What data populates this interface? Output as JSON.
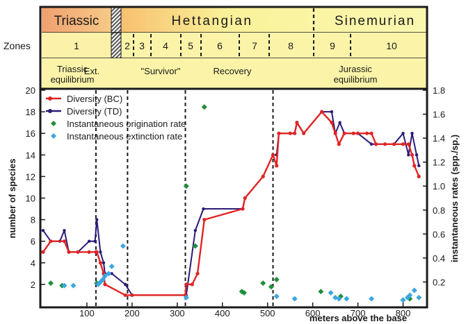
{
  "header": {
    "periods": [
      "Triassic",
      "Hettangian",
      "Sinemurian"
    ],
    "zones_label": "Zones",
    "zones": [
      "1",
      "2",
      "3",
      "4",
      "5",
      "6",
      "7",
      "8",
      "9",
      "10"
    ],
    "phase_row1": [
      "Triassic",
      "Ext.",
      "\"Survivor\"",
      "Recovery",
      "Jurassic"
    ],
    "phase_row2": [
      "equilibrium",
      "equilibrium"
    ]
  },
  "colors": {
    "bc": "#e02424",
    "td": "#2b1a78",
    "origination": "#1f8f3a",
    "extinction": "#3aa7e0",
    "triassic_band": "#f2a86a",
    "jurassic_band": "#faf29a",
    "zone_band": "#fbf4a8"
  },
  "chart_data": {
    "type": "line",
    "xlabel": "meters above the base",
    "ylabel": "number of species",
    "y2label": "instantaneous rates (spp./sp.)",
    "xlim": [
      0,
      850
    ],
    "ylim": [
      0,
      20
    ],
    "y2lim": [
      0,
      1.8
    ],
    "xticks": [
      100,
      200,
      300,
      400,
      500,
      600,
      700,
      800
    ],
    "yticks": [
      2,
      4,
      6,
      8,
      10,
      12,
      14,
      16,
      18,
      20
    ],
    "y2ticks": [
      0.2,
      0.4,
      0.6,
      0.8,
      1.0,
      1.2,
      1.4,
      1.6,
      1.8
    ],
    "legend": {
      "position": "top-left",
      "entries": [
        "Diversity (BC)",
        "Diversity (TD)",
        "Instantaneous origination rate",
        "Instantaneous extinction rate"
      ]
    },
    "boundaries_m": [
      120,
      190,
      318,
      512
    ],
    "series": [
      {
        "name": "Diversity (BC)",
        "axis": "left",
        "style": "line-dots",
        "x": [
          3,
          20,
          50,
          60,
          80,
          105,
          120,
          122,
          130,
          137,
          140,
          185,
          200,
          318,
          320,
          333,
          345,
          360,
          445,
          450,
          490,
          512,
          520,
          525,
          550,
          560,
          565,
          580,
          620,
          642,
          650,
          658,
          670,
          690,
          700,
          720,
          730,
          740,
          760,
          780,
          800,
          812,
          820,
          825,
          835
        ],
        "y": [
          5,
          6,
          6,
          5,
          5,
          5,
          5,
          5,
          4,
          3,
          2,
          1,
          1,
          1,
          2,
          2,
          3,
          8,
          9,
          10,
          12,
          14,
          13,
          16,
          16,
          16,
          17,
          16,
          18,
          17,
          16,
          15,
          16,
          16,
          16,
          16,
          16,
          15,
          15,
          15,
          15,
          15,
          14,
          13,
          12
        ]
      },
      {
        "name": "Diversity (TD)",
        "axis": "left",
        "style": "line-dots",
        "x": [
          3,
          20,
          40,
          50,
          60,
          80,
          105,
          118,
          122,
          130,
          137,
          140,
          155,
          185,
          200,
          318,
          320,
          340,
          358,
          445,
          450,
          490,
          512,
          520,
          525,
          560,
          565,
          580,
          620,
          642,
          650,
          660,
          670,
          700,
          730,
          760,
          780,
          800,
          812,
          820,
          830,
          835
        ],
        "y": [
          7,
          6,
          6,
          7,
          5,
          5,
          6,
          6,
          8,
          5,
          4,
          3,
          3,
          2,
          1,
          1,
          1,
          7,
          9,
          9,
          10,
          12,
          14,
          14,
          16,
          16,
          17,
          16,
          18,
          18,
          16,
          17,
          16,
          16,
          15,
          15,
          15,
          16,
          14,
          16,
          14,
          13
        ]
      },
      {
        "name": "Instantaneous origination rate",
        "axis": "right",
        "style": "points",
        "x": [
          20,
          45,
          122,
          320,
          340,
          360,
          443,
          448,
          490,
          508,
          520,
          618,
          662,
          800,
          815
        ],
        "y": [
          0.19,
          0.17,
          0.19,
          1.0,
          0.5,
          1.66,
          0.12,
          0.11,
          0.19,
          0.16,
          0.22,
          0.12,
          0.08,
          0.05,
          0.06
        ]
      },
      {
        "name": "Instantaneous extinction rate",
        "axis": "right",
        "style": "points",
        "x": [
          50,
          70,
          125,
          130,
          135,
          140,
          148,
          155,
          180,
          320,
          520,
          560,
          640,
          650,
          658,
          675,
          730,
          800,
          810,
          815,
          825,
          835
        ],
        "y": [
          0.17,
          0.17,
          0.18,
          0.2,
          0.22,
          0.25,
          0.27,
          0.33,
          0.5,
          0.07,
          0.08,
          0.06,
          0.11,
          0.07,
          0.06,
          0.06,
          0.06,
          0.05,
          0.07,
          0.09,
          0.13,
          0.07
        ]
      }
    ]
  }
}
